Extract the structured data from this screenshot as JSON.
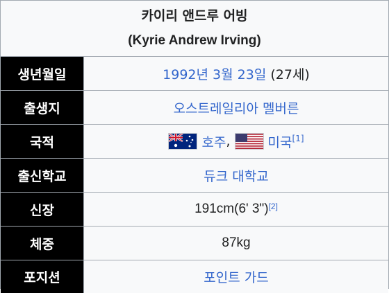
{
  "header": {
    "name_ko": "카이리 앤드루 어빙",
    "name_en": "(Kyrie Andrew Irving)"
  },
  "rows": {
    "birth": {
      "label": "생년월일",
      "year_link": "1992년",
      "date_link": "3월 23일",
      "age": "(27세)"
    },
    "birthplace": {
      "label": "출생지",
      "country_link": "오스트레일리아",
      "city_link": "멜버른"
    },
    "nationality": {
      "label": "국적",
      "country1": "호주",
      "separator": ",",
      "country2": "미국",
      "ref": "[1]"
    },
    "school": {
      "label": "출신학교",
      "value": "듀크 대학교"
    },
    "height": {
      "label": "신장",
      "value": "191cm(6' 3\")",
      "ref": "[2]"
    },
    "weight": {
      "label": "체중",
      "value": "87kg"
    },
    "position": {
      "label": "포지션",
      "value": "포인트 가드"
    }
  },
  "colors": {
    "link": "#3366cc",
    "label_bg": "#000000",
    "label_text": "#ffffff",
    "border": "#a2a9b1",
    "background": "#f8f9fa"
  },
  "icons": [
    "australia-flag-icon",
    "usa-flag-icon"
  ]
}
